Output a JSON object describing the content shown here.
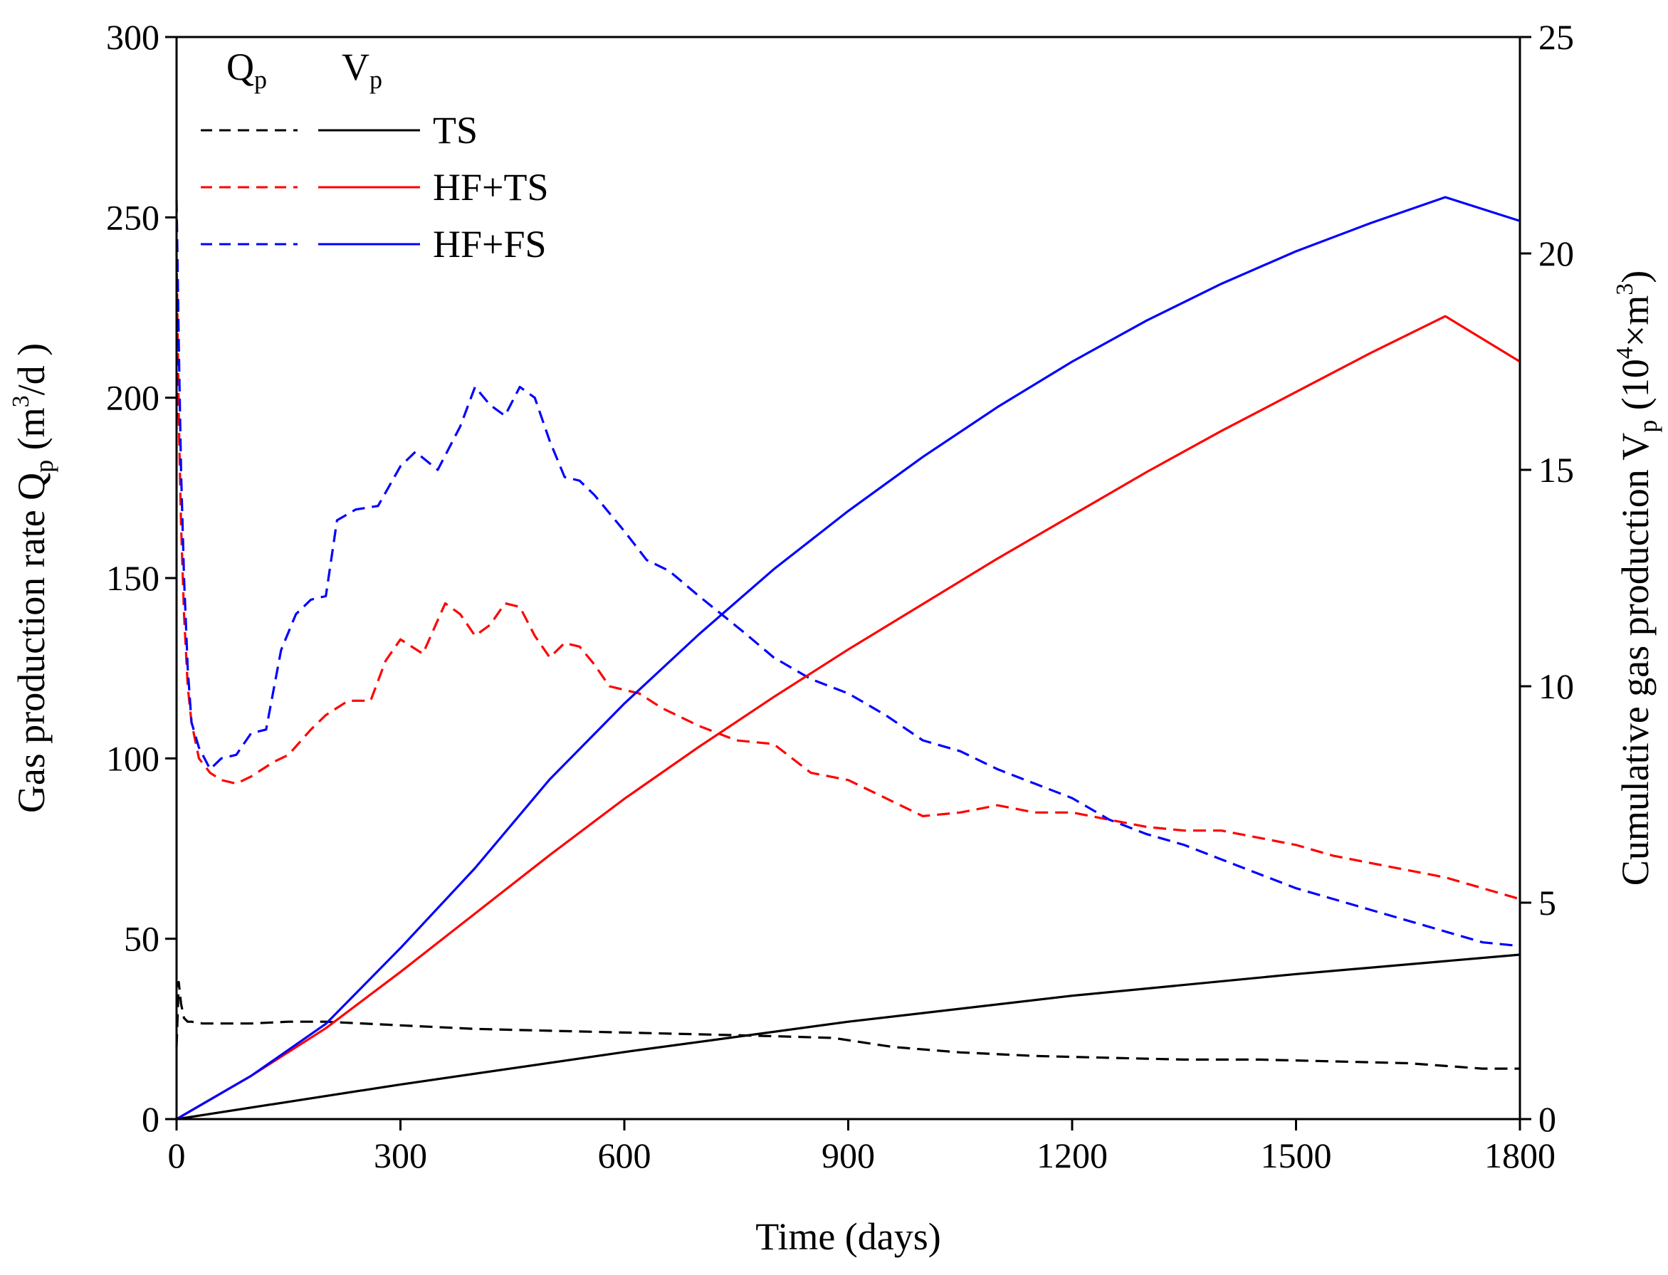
{
  "chart_data": {
    "type": "line",
    "title": "",
    "xlabel": "Time (days)",
    "ylabel_left": {
      "main": "Gas production rate Q",
      "sub": "p",
      "unit_pre": " (m",
      "unit_sup": "3",
      "unit_post": "/d )"
    },
    "ylabel_right": {
      "main": "Cumulative gas production V",
      "sub": "p",
      "unit_pre": " (10",
      "unit_sup": "4",
      "unit_post": "×m",
      "unit_sup2": "3",
      "unit_end": ")"
    },
    "xlim": [
      0,
      1800
    ],
    "ylim_left": [
      0,
      300
    ],
    "ylim_right": [
      0,
      25
    ],
    "x_ticks": [
      0,
      300,
      600,
      900,
      1200,
      1500,
      1800
    ],
    "y_left_ticks": [
      0,
      50,
      100,
      150,
      200,
      250,
      300
    ],
    "y_right_ticks": [
      0,
      5,
      10,
      15,
      20,
      25
    ],
    "legend": {
      "position": "top-left",
      "header_qp": {
        "main": "Q",
        "sub": "p"
      },
      "header_vp": {
        "main": "V",
        "sub": "p"
      },
      "entries": [
        "TS",
        "HF+TS",
        "HF+FS"
      ]
    },
    "colors": {
      "TS": "#000000",
      "HF+TS": "#ff0000",
      "HF+FS": "#0000ff"
    },
    "series": [
      {
        "name": "TS",
        "quantity": "Qp",
        "axis": "left",
        "style": "dashed",
        "color": "#000000",
        "x": [
          0,
          3,
          6,
          10,
          15,
          20,
          35,
          60,
          100,
          150,
          200,
          300,
          400,
          500,
          600,
          700,
          800,
          880,
          960,
          1050,
          1150,
          1250,
          1350,
          1450,
          1550,
          1650,
          1750,
          1800
        ],
        "y": [
          20,
          38,
          32,
          28,
          27,
          27,
          26.5,
          26.5,
          26.5,
          27,
          27,
          26,
          25,
          24.5,
          24,
          23.5,
          23,
          22.5,
          20,
          18.5,
          17.5,
          17,
          16.5,
          16.5,
          16,
          15.5,
          14,
          14
        ]
      },
      {
        "name": "HF+TS",
        "quantity": "Qp",
        "axis": "left",
        "style": "dashed",
        "color": "#ff0000",
        "x": [
          0,
          3,
          6,
          10,
          15,
          20,
          30,
          45,
          60,
          80,
          100,
          130,
          150,
          180,
          200,
          230,
          260,
          280,
          300,
          330,
          360,
          380,
          400,
          420,
          440,
          460,
          480,
          500,
          520,
          540,
          560,
          580,
          600,
          620,
          650,
          700,
          750,
          800,
          850,
          900,
          950,
          1000,
          1050,
          1100,
          1150,
          1200,
          1250,
          1300,
          1350,
          1400,
          1450,
          1500,
          1550,
          1600,
          1650,
          1700,
          1750,
          1800
        ],
        "y": [
          240,
          195,
          165,
          140,
          120,
          110,
          100,
          96,
          94,
          93,
          95,
          99,
          101,
          108,
          112,
          116,
          116,
          127,
          133,
          129,
          143,
          140,
          134,
          137,
          143,
          142,
          134,
          128,
          132,
          131,
          126,
          120,
          119,
          118,
          114,
          109,
          105,
          104,
          96,
          94,
          89,
          84,
          85,
          87,
          85,
          85,
          83,
          81,
          80,
          80,
          78,
          76,
          73,
          71,
          69,
          67,
          64,
          61
        ]
      },
      {
        "name": "HF+FS",
        "quantity": "Qp",
        "axis": "left",
        "style": "dashed",
        "color": "#0000ff",
        "x": [
          0,
          3,
          6,
          10,
          15,
          20,
          30,
          45,
          60,
          80,
          100,
          120,
          140,
          160,
          180,
          200,
          215,
          240,
          270,
          300,
          320,
          350,
          380,
          400,
          420,
          440,
          460,
          480,
          500,
          520,
          540,
          560,
          600,
          630,
          660,
          700,
          760,
          800,
          850,
          900,
          950,
          1000,
          1050,
          1100,
          1150,
          1200,
          1250,
          1300,
          1350,
          1400,
          1450,
          1500,
          1550,
          1600,
          1650,
          1700,
          1750,
          1800
        ],
        "y": [
          255,
          215,
          180,
          150,
          125,
          110,
          103,
          97,
          100,
          101,
          107,
          108,
          130,
          140,
          144,
          145,
          166,
          169,
          170,
          181,
          185,
          180,
          192,
          203,
          198,
          195,
          203,
          200,
          188,
          178,
          177,
          173,
          163,
          155,
          152,
          145,
          135,
          128,
          122,
          118,
          112,
          105,
          102,
          97,
          93,
          89,
          83,
          79,
          76,
          72,
          68,
          64,
          61,
          58,
          55,
          52,
          49,
          48
        ]
      },
      {
        "name": "TS",
        "quantity": "Vp",
        "axis": "right",
        "style": "solid",
        "color": "#000000",
        "x": [
          0,
          300,
          600,
          900,
          1200,
          1500,
          1800
        ],
        "y": [
          0,
          0.8,
          1.55,
          2.25,
          2.85,
          3.35,
          3.8
        ]
      },
      {
        "name": "HF+TS",
        "quantity": "Vp",
        "axis": "right",
        "style": "solid",
        "color": "#ff0000",
        "x": [
          0,
          100,
          200,
          300,
          400,
          500,
          600,
          700,
          800,
          900,
          1000,
          1100,
          1200,
          1300,
          1400,
          1500,
          1600,
          1700,
          1800
        ],
        "y": [
          0,
          1.0,
          2.1,
          3.4,
          4.75,
          6.1,
          7.4,
          8.6,
          9.75,
          10.85,
          11.9,
          12.95,
          13.95,
          14.95,
          15.9,
          16.8,
          17.7,
          18.55,
          17.5
        ]
      },
      {
        "name": "HF+FS",
        "quantity": "Vp",
        "axis": "right",
        "style": "solid",
        "color": "#0000ff",
        "x": [
          0,
          100,
          200,
          300,
          400,
          500,
          600,
          700,
          800,
          900,
          1000,
          1100,
          1200,
          1300,
          1400,
          1500,
          1600,
          1700,
          1800
        ],
        "y": [
          0,
          1.0,
          2.2,
          3.95,
          5.8,
          7.85,
          9.6,
          11.2,
          12.7,
          14.05,
          15.3,
          16.45,
          17.5,
          18.45,
          19.3,
          20.05,
          20.7,
          21.3,
          20.75
        ]
      }
    ]
  }
}
